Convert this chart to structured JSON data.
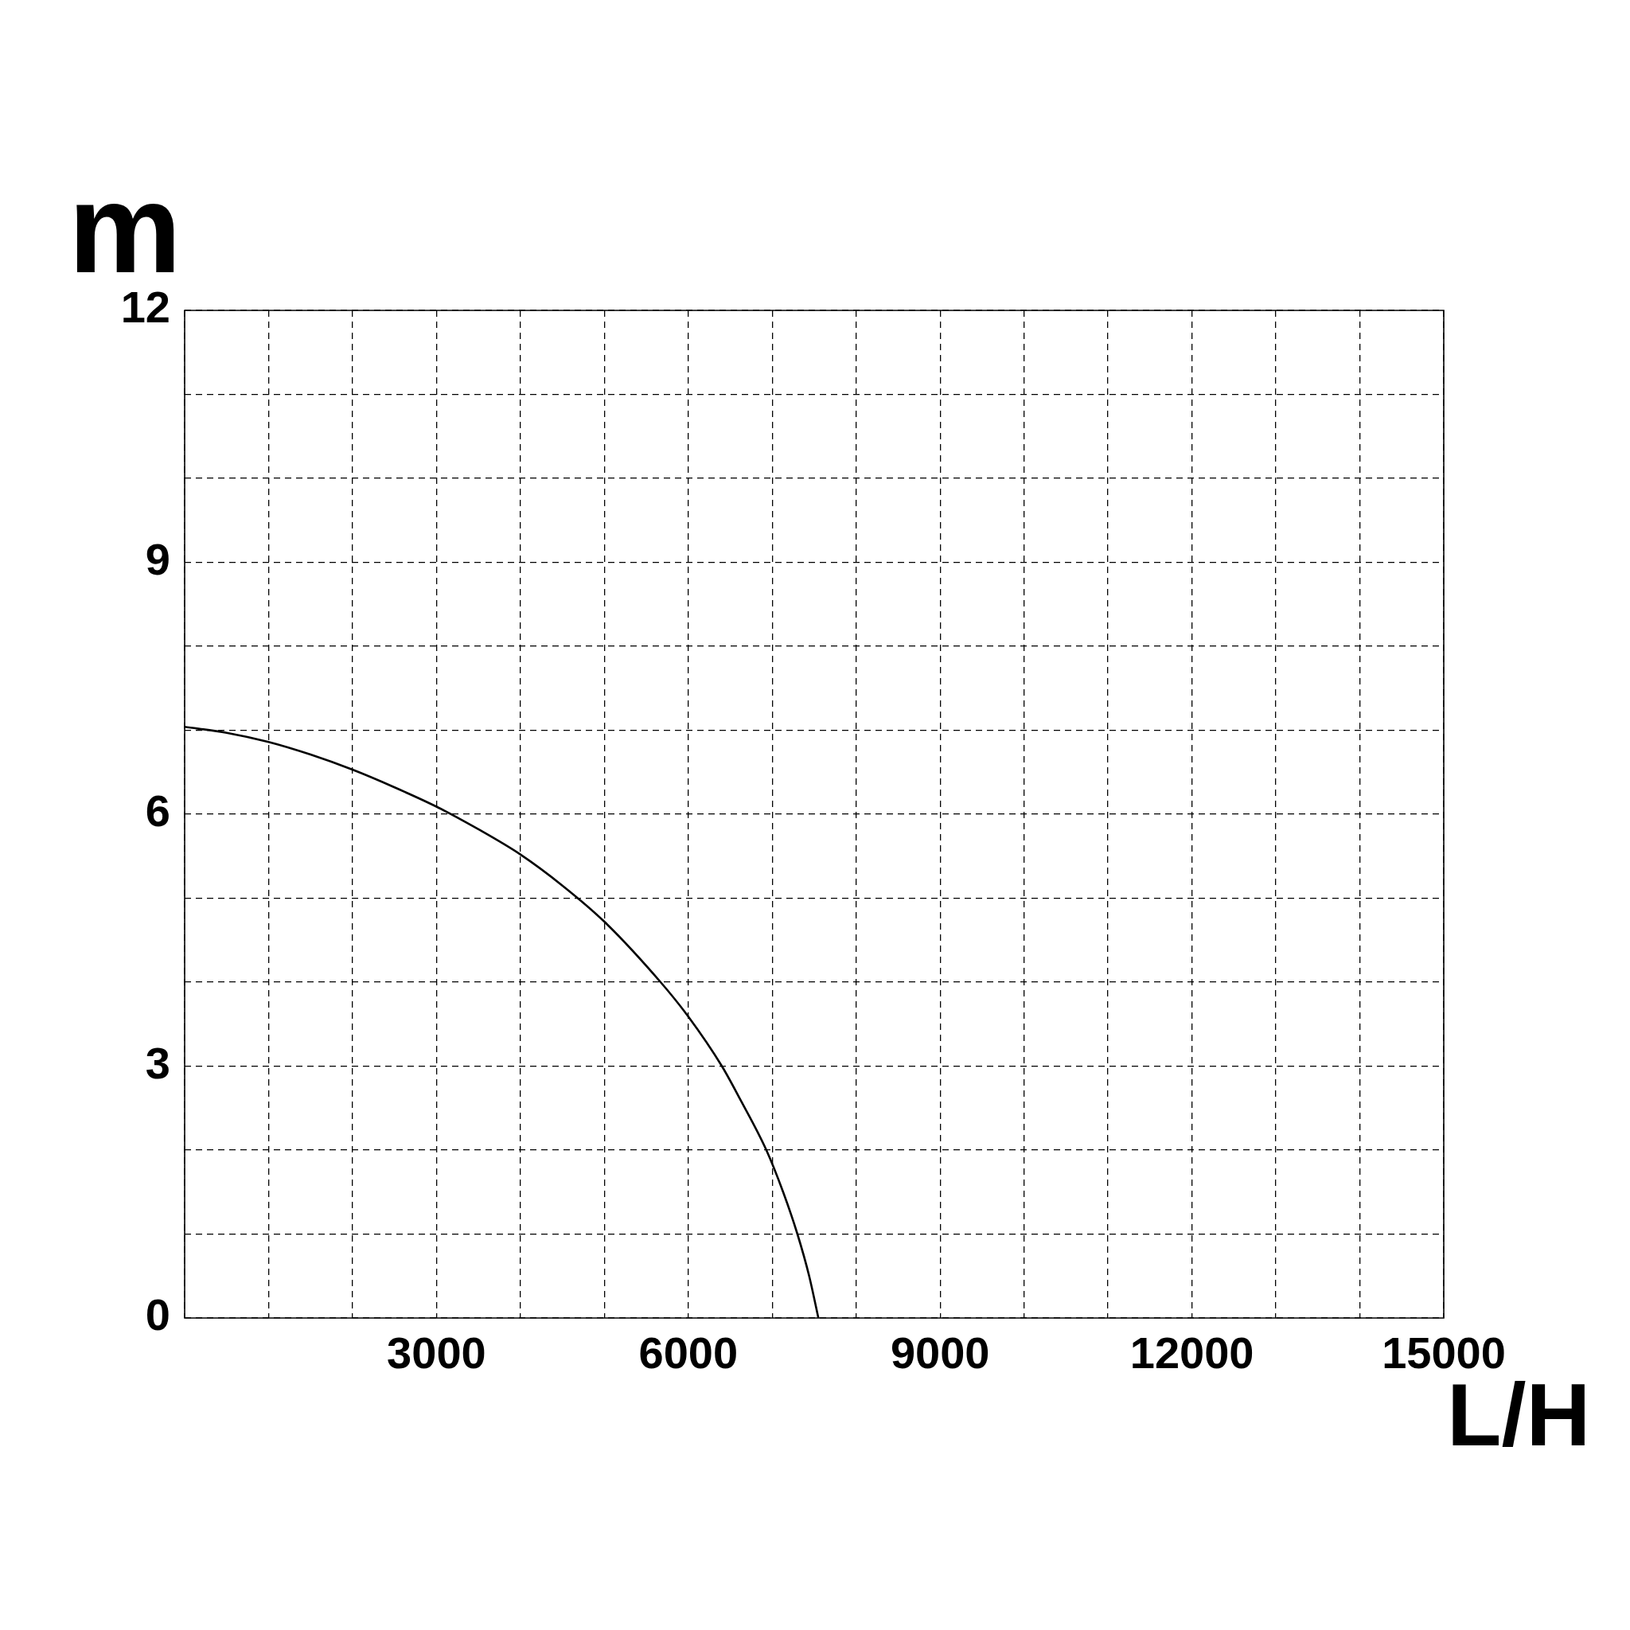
{
  "chart_data": {
    "type": "line",
    "xlabel": "L/H",
    "ylabel": "m",
    "x": [
      0,
      500,
      1000,
      1500,
      2000,
      2500,
      3000,
      3500,
      4000,
      4500,
      5000,
      5670,
      6000,
      6400,
      6610,
      6930,
      7130,
      7300,
      7440,
      7550
    ],
    "series": [
      {
        "color": "#000000",
        "values": [
          7.04,
          6.97,
          6.86,
          6.71,
          6.53,
          6.32,
          6.09,
          5.82,
          5.52,
          5.15,
          4.72,
          4.0,
          3.59,
          3.0,
          2.62,
          2.0,
          1.5,
          1.0,
          0.5,
          0.0
        ]
      }
    ],
    "xlim": [
      0,
      15000
    ],
    "ylim": [
      0,
      12
    ],
    "xticks": [
      {
        "value": 0,
        "label": null
      },
      {
        "value": 1000,
        "label": null
      },
      {
        "value": 2000,
        "label": null
      },
      3000,
      {
        "value": 4000,
        "label": null
      },
      {
        "value": 5000,
        "label": null
      },
      6000,
      {
        "value": 7000,
        "label": null
      },
      {
        "value": 8000,
        "label": null
      },
      9000,
      {
        "value": 10000,
        "label": null
      },
      {
        "value": 11000,
        "label": null
      },
      12000,
      {
        "value": 13000,
        "label": null
      },
      {
        "value": 14000,
        "label": null
      },
      15000
    ],
    "yticks": [
      0,
      {
        "value": 1,
        "label": null
      },
      {
        "value": 2,
        "label": null
      },
      3,
      {
        "value": 4,
        "label": null
      },
      {
        "value": 5,
        "label": null
      },
      6,
      {
        "value": 7,
        "label": null
      },
      {
        "value": 8,
        "label": null
      },
      9,
      {
        "value": 10,
        "label": null
      },
      {
        "value": 11,
        "label": null
      },
      12
    ],
    "grid": true,
    "legend": false,
    "marker": "none",
    "line_style": "solid"
  }
}
